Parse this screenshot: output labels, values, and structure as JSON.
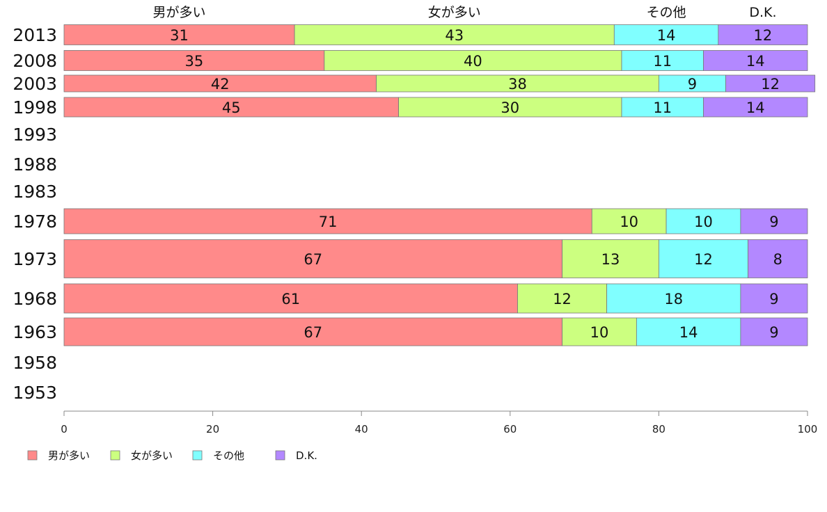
{
  "chart_data": {
    "type": "bar",
    "orientation": "horizontal",
    "stacked": true,
    "title": "",
    "xlabel": "",
    "ylabel": "",
    "xlim": [
      0,
      100
    ],
    "xticks": [
      0,
      20,
      40,
      60,
      80,
      100
    ],
    "grid": false,
    "legend_position": "bottom-left",
    "categories": [
      "2013",
      "2008",
      "2003",
      "1998",
      "1993",
      "1988",
      "1983",
      "1978",
      "1973",
      "1968",
      "1963",
      "1958",
      "1953"
    ],
    "series": [
      {
        "name": "男が多い",
        "color": "#ff8a8a",
        "values": [
          31,
          35,
          42,
          45,
          null,
          null,
          null,
          71,
          67,
          61,
          67,
          null,
          null
        ]
      },
      {
        "name": "女が多い",
        "color": "#ccff80",
        "values": [
          43,
          40,
          38,
          30,
          null,
          null,
          null,
          10,
          13,
          12,
          10,
          null,
          null
        ]
      },
      {
        "name": "その他",
        "color": "#80ffff",
        "values": [
          14,
          11,
          9,
          11,
          null,
          null,
          null,
          10,
          12,
          18,
          14,
          null,
          null
        ]
      },
      {
        "name": "D.K.",
        "color": "#b388ff",
        "values": [
          12,
          14,
          12,
          14,
          null,
          null,
          null,
          9,
          8,
          9,
          9,
          null,
          null
        ]
      }
    ]
  }
}
